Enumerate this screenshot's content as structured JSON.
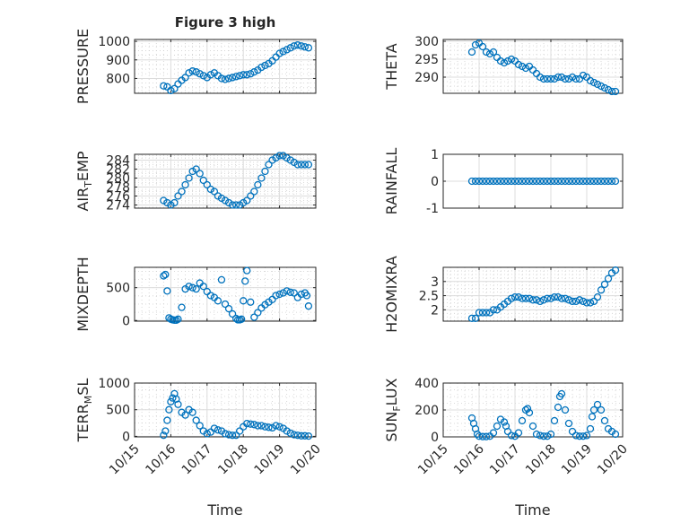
{
  "figure": {
    "title": "Figure 3 high",
    "xlabel": "Time",
    "marker_color": "#0072bd",
    "x_tick_labels": [
      "10/15",
      "10/16",
      "10/17",
      "10/18",
      "10/19",
      "10/20"
    ]
  },
  "chart_data": [
    {
      "type": "scatter",
      "ylabel": "PRESSURE",
      "xlim": [
        0,
        5
      ],
      "ylim": [
        720,
        1010
      ],
      "yticks": [
        800,
        900,
        1000
      ],
      "ytick_labels": [
        "800",
        "900",
        "1000"
      ],
      "grid": true,
      "minor_grid": true,
      "x": [
        0.8,
        0.9,
        1.0,
        1.1,
        1.2,
        1.3,
        1.4,
        1.5,
        1.6,
        1.7,
        1.8,
        1.9,
        2.0,
        2.1,
        2.2,
        2.3,
        2.4,
        2.5,
        2.6,
        2.7,
        2.8,
        2.9,
        3.0,
        3.1,
        3.2,
        3.3,
        3.4,
        3.5,
        3.6,
        3.7,
        3.8,
        3.9,
        4.0,
        4.1,
        4.2,
        4.3,
        4.4,
        4.5,
        4.6,
        4.7,
        4.8
      ],
      "y": [
        760,
        755,
        735,
        745,
        770,
        790,
        805,
        830,
        840,
        835,
        825,
        815,
        805,
        820,
        830,
        815,
        800,
        795,
        800,
        805,
        810,
        815,
        820,
        820,
        825,
        835,
        845,
        860,
        870,
        880,
        895,
        915,
        935,
        945,
        955,
        965,
        975,
        980,
        975,
        970,
        965
      ]
    },
    {
      "type": "scatter",
      "ylabel": "THETA",
      "xlim": [
        0,
        5
      ],
      "ylim": [
        285.5,
        300.5
      ],
      "yticks": [
        290,
        295,
        300
      ],
      "ytick_labels": [
        "290",
        "295",
        "300"
      ],
      "grid": true,
      "minor_grid": true,
      "x": [
        0.8,
        0.9,
        1.0,
        1.1,
        1.2,
        1.3,
        1.4,
        1.5,
        1.6,
        1.7,
        1.8,
        1.9,
        2.0,
        2.1,
        2.2,
        2.3,
        2.4,
        2.5,
        2.6,
        2.7,
        2.8,
        2.9,
        3.0,
        3.1,
        3.2,
        3.3,
        3.4,
        3.5,
        3.6,
        3.7,
        3.8,
        3.9,
        4.0,
        4.1,
        4.2,
        4.3,
        4.4,
        4.5,
        4.6,
        4.7,
        4.8
      ],
      "y": [
        297,
        299,
        299.5,
        298.5,
        297,
        296.5,
        297,
        295.5,
        294.5,
        294,
        294.5,
        295,
        294.5,
        293.5,
        293,
        292.5,
        293,
        292,
        291,
        290,
        289.5,
        289.5,
        289.5,
        289.5,
        290,
        290,
        289.5,
        289.5,
        290,
        289.5,
        289.5,
        290.5,
        290,
        289,
        288.5,
        288,
        287.5,
        287,
        286.5,
        286,
        286
      ]
    },
    {
      "type": "scatter",
      "ylabel": "AIR",
      "ylabel_subscript": "T",
      "ylabel_suffix": "EMP",
      "xlim": [
        0,
        5
      ],
      "ylim": [
        273.3,
        285.3
      ],
      "yticks": [
        274,
        276,
        278,
        280,
        282,
        284
      ],
      "ytick_labels": [
        "274",
        "276",
        "278",
        "280",
        "282",
        "284"
      ],
      "grid": true,
      "minor_grid": true,
      "x": [
        0.8,
        0.9,
        1.0,
        1.1,
        1.2,
        1.3,
        1.4,
        1.5,
        1.6,
        1.7,
        1.8,
        1.9,
        2.0,
        2.1,
        2.2,
        2.3,
        2.4,
        2.5,
        2.6,
        2.7,
        2.8,
        2.9,
        3.0,
        3.1,
        3.2,
        3.3,
        3.4,
        3.5,
        3.6,
        3.7,
        3.8,
        3.9,
        4.0,
        4.1,
        4.2,
        4.3,
        4.4,
        4.5,
        4.6,
        4.7,
        4.8
      ],
      "y": [
        275,
        274.5,
        274,
        274.5,
        276,
        277,
        278.5,
        280,
        281.5,
        282,
        281,
        279.5,
        278.5,
        277.5,
        277,
        276,
        275.5,
        275,
        274.5,
        274,
        274,
        274,
        274.5,
        275,
        276,
        277,
        278.5,
        280,
        281.5,
        283,
        284,
        284.5,
        285,
        285,
        284.5,
        284,
        283.5,
        283,
        283,
        283,
        283
      ]
    },
    {
      "type": "scatter",
      "ylabel": "RAINFALL",
      "xlim": [
        0,
        5
      ],
      "ylim": [
        -1,
        1
      ],
      "yticks": [
        -1,
        0,
        1
      ],
      "ytick_labels": [
        "-1",
        "0",
        "1"
      ],
      "grid": true,
      "minor_grid": false,
      "x": [
        0.8,
        0.9,
        1.0,
        1.1,
        1.2,
        1.3,
        1.4,
        1.5,
        1.6,
        1.7,
        1.8,
        1.9,
        2.0,
        2.1,
        2.2,
        2.3,
        2.4,
        2.5,
        2.6,
        2.7,
        2.8,
        2.9,
        3.0,
        3.1,
        3.2,
        3.3,
        3.4,
        3.5,
        3.6,
        3.7,
        3.8,
        3.9,
        4.0,
        4.1,
        4.2,
        4.3,
        4.4,
        4.5,
        4.6,
        4.7,
        4.8
      ],
      "y": [
        0,
        0,
        0,
        0,
        0,
        0,
        0,
        0,
        0,
        0,
        0,
        0,
        0,
        0,
        0,
        0,
        0,
        0,
        0,
        0,
        0,
        0,
        0,
        0,
        0,
        0,
        0,
        0,
        0,
        0,
        0,
        0,
        0,
        0,
        0,
        0,
        0,
        0,
        0,
        0,
        0
      ]
    },
    {
      "type": "scatter",
      "ylabel": "MIXDEPTH",
      "xlim": [
        0,
        5
      ],
      "ylim": [
        -10,
        810
      ],
      "yticks": [
        0,
        500
      ],
      "ytick_labels": [
        "0",
        "500"
      ],
      "grid": true,
      "minor_grid": true,
      "x": [
        0.8,
        0.85,
        0.9,
        0.95,
        1.0,
        1.05,
        1.1,
        1.15,
        1.2,
        1.3,
        1.4,
        1.5,
        1.6,
        1.7,
        1.8,
        1.9,
        2.0,
        2.1,
        2.2,
        2.3,
        2.4,
        2.5,
        2.6,
        2.7,
        2.8,
        2.85,
        2.9,
        2.95,
        3.0,
        3.05,
        3.1,
        3.2,
        3.3,
        3.4,
        3.5,
        3.6,
        3.7,
        3.8,
        3.9,
        4.0,
        4.1,
        4.2,
        4.3,
        4.4,
        4.5,
        4.6,
        4.7,
        4.75,
        4.8
      ],
      "y": [
        680,
        700,
        450,
        40,
        20,
        10,
        5,
        5,
        20,
        200,
        480,
        520,
        500,
        480,
        570,
        520,
        440,
        380,
        350,
        300,
        620,
        250,
        180,
        100,
        30,
        10,
        10,
        20,
        300,
        600,
        760,
        280,
        50,
        120,
        190,
        240,
        280,
        320,
        380,
        400,
        420,
        450,
        430,
        420,
        350,
        400,
        420,
        380,
        220
      ]
    },
    {
      "type": "scatter",
      "ylabel": "H2OMIXRA",
      "xlim": [
        0,
        5
      ],
      "ylim": [
        1.6,
        3.5
      ],
      "yticks": [
        2,
        2.5,
        3
      ],
      "ytick_labels": [
        "2",
        "2.5",
        "3"
      ],
      "grid": true,
      "minor_grid": true,
      "x": [
        0.8,
        0.9,
        1.0,
        1.1,
        1.2,
        1.3,
        1.4,
        1.5,
        1.6,
        1.7,
        1.8,
        1.9,
        2.0,
        2.1,
        2.2,
        2.3,
        2.4,
        2.5,
        2.6,
        2.7,
        2.8,
        2.9,
        3.0,
        3.1,
        3.2,
        3.3,
        3.4,
        3.5,
        3.6,
        3.7,
        3.8,
        3.9,
        4.0,
        4.1,
        4.2,
        4.3,
        4.4,
        4.5,
        4.6,
        4.7,
        4.8
      ],
      "y": [
        1.7,
        1.7,
        1.9,
        1.9,
        1.9,
        1.9,
        2.0,
        2.0,
        2.1,
        2.2,
        2.3,
        2.4,
        2.45,
        2.45,
        2.4,
        2.4,
        2.4,
        2.35,
        2.35,
        2.3,
        2.35,
        2.4,
        2.4,
        2.45,
        2.45,
        2.4,
        2.4,
        2.35,
        2.3,
        2.3,
        2.35,
        2.3,
        2.25,
        2.25,
        2.3,
        2.45,
        2.7,
        2.9,
        3.1,
        3.3,
        3.4
      ]
    },
    {
      "type": "scatter",
      "ylabel": "TERR",
      "ylabel_subscript": "M",
      "ylabel_suffix": "SL",
      "xlim": [
        0,
        5
      ],
      "ylim": [
        -10,
        1000
      ],
      "yticks": [
        0,
        500,
        1000
      ],
      "ytick_labels": [
        "0",
        "500",
        "1000"
      ],
      "grid": true,
      "minor_grid": true,
      "x": [
        0.8,
        0.85,
        0.9,
        0.95,
        1.0,
        1.05,
        1.1,
        1.15,
        1.2,
        1.3,
        1.4,
        1.5,
        1.6,
        1.7,
        1.8,
        1.9,
        2.0,
        2.1,
        2.2,
        2.3,
        2.4,
        2.5,
        2.6,
        2.7,
        2.8,
        2.9,
        3.0,
        3.1,
        3.2,
        3.3,
        3.4,
        3.5,
        3.6,
        3.7,
        3.8,
        3.9,
        4.0,
        4.1,
        4.2,
        4.3,
        4.4,
        4.5,
        4.6,
        4.7,
        4.8
      ],
      "y": [
        20,
        100,
        300,
        500,
        650,
        720,
        800,
        700,
        600,
        450,
        400,
        500,
        450,
        300,
        200,
        100,
        50,
        80,
        150,
        120,
        100,
        50,
        30,
        20,
        20,
        100,
        180,
        240,
        230,
        220,
        200,
        200,
        180,
        170,
        160,
        200,
        180,
        150,
        100,
        60,
        30,
        20,
        10,
        10,
        5
      ]
    },
    {
      "type": "scatter",
      "ylabel": "SUN",
      "ylabel_subscript": "F",
      "ylabel_suffix": "LUX",
      "xlim": [
        0,
        5
      ],
      "ylim": [
        0,
        400
      ],
      "yticks": [
        0,
        200,
        400
      ],
      "ytick_labels": [
        "0",
        "200",
        "400"
      ],
      "grid": true,
      "minor_grid": true,
      "x": [
        0.8,
        0.85,
        0.9,
        0.95,
        1.0,
        1.1,
        1.2,
        1.3,
        1.4,
        1.5,
        1.6,
        1.7,
        1.75,
        1.8,
        1.9,
        2.0,
        2.1,
        2.2,
        2.3,
        2.35,
        2.4,
        2.5,
        2.6,
        2.7,
        2.8,
        2.9,
        3.0,
        3.1,
        3.2,
        3.25,
        3.3,
        3.4,
        3.5,
        3.6,
        3.7,
        3.8,
        3.9,
        4.0,
        4.1,
        4.15,
        4.2,
        4.3,
        4.4,
        4.5,
        4.6,
        4.7,
        4.8
      ],
      "y": [
        140,
        100,
        60,
        20,
        5,
        2,
        2,
        5,
        30,
        80,
        130,
        110,
        80,
        40,
        10,
        5,
        30,
        120,
        200,
        210,
        180,
        80,
        20,
        10,
        5,
        5,
        20,
        120,
        220,
        300,
        320,
        200,
        100,
        40,
        10,
        5,
        5,
        10,
        60,
        150,
        200,
        240,
        200,
        120,
        60,
        40,
        20
      ]
    }
  ]
}
